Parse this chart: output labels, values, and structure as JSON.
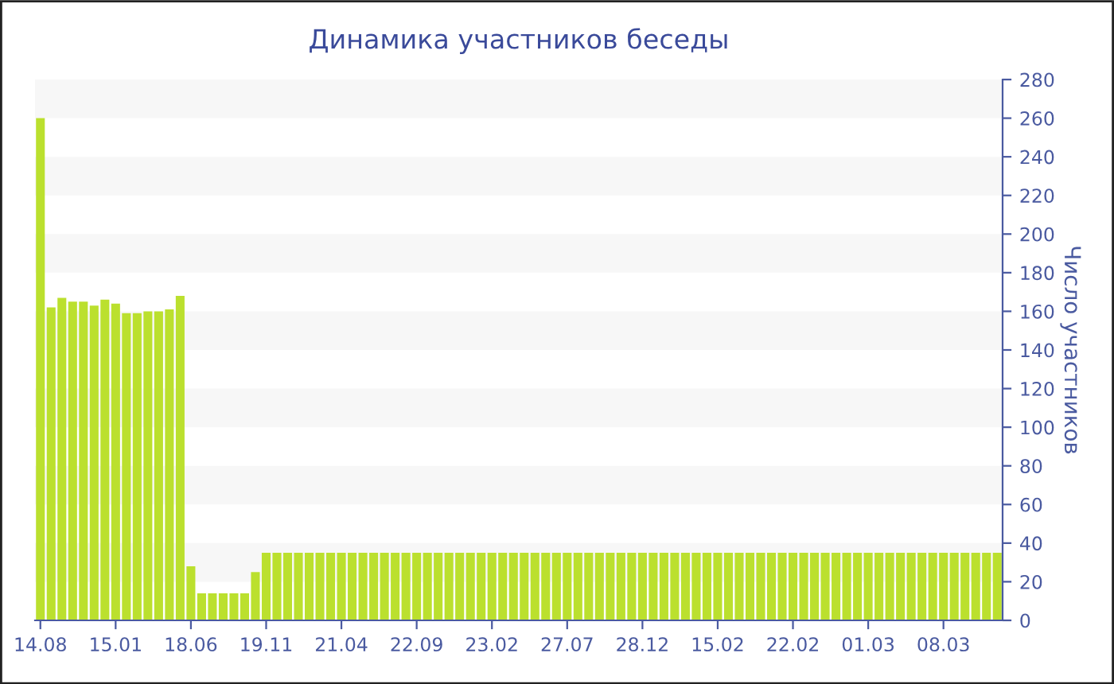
{
  "chart_data": {
    "type": "bar",
    "title": "Динамика участников беседы",
    "ylabel": "Число участников",
    "categories": [
      "14.08",
      null,
      null,
      null,
      null,
      null,
      null,
      "15.01",
      null,
      null,
      null,
      null,
      null,
      null,
      "18.06",
      null,
      null,
      null,
      null,
      null,
      null,
      "19.11",
      null,
      null,
      null,
      null,
      null,
      null,
      "21.04",
      null,
      null,
      null,
      null,
      null,
      null,
      "22.09",
      null,
      null,
      null,
      null,
      null,
      null,
      "23.02",
      null,
      null,
      null,
      null,
      null,
      null,
      "27.07",
      null,
      null,
      null,
      null,
      null,
      null,
      "28.12",
      null,
      null,
      null,
      null,
      null,
      null,
      "15.02",
      null,
      null,
      null,
      null,
      null,
      null,
      "22.02",
      null,
      null,
      null,
      null,
      null,
      null,
      "01.03",
      null,
      null,
      null,
      null,
      null,
      null,
      "08.03",
      null,
      null,
      null,
      null,
      null
    ],
    "values": [
      260,
      162,
      167,
      165,
      165,
      163,
      166,
      164,
      159,
      159,
      160,
      160,
      161,
      168,
      28,
      14,
      14,
      14,
      14,
      14,
      25,
      35,
      35,
      35,
      35,
      35,
      35,
      35,
      35,
      35,
      35,
      35,
      35,
      35,
      35,
      35,
      35,
      35,
      35,
      35,
      35,
      35,
      35,
      35,
      35,
      35,
      35,
      35,
      35,
      35,
      35,
      35,
      35,
      35,
      35,
      35,
      35,
      35,
      35,
      35,
      35,
      35,
      35,
      35,
      35,
      35,
      35,
      35,
      35,
      35,
      35,
      35,
      35,
      35,
      35,
      35,
      35,
      35,
      35,
      35,
      35,
      35,
      35,
      35,
      35,
      35,
      35,
      35,
      35,
      35
    ],
    "color": "#bbe02e",
    "ylim": [
      0,
      280
    ],
    "yticks": [
      0,
      20,
      40,
      60,
      80,
      100,
      120,
      140,
      160,
      180,
      200,
      220,
      240,
      260,
      280
    ],
    "bands": [
      {
        "axis": "y",
        "from": 20,
        "to": 40,
        "color": "#f7f7f7"
      },
      {
        "axis": "y",
        "from": 60,
        "to": 80,
        "color": "#f7f7f7"
      },
      {
        "axis": "y",
        "from": 100,
        "to": 120,
        "color": "#f7f7f7"
      },
      {
        "axis": "y",
        "from": 140,
        "to": 160,
        "color": "#f7f7f7"
      },
      {
        "axis": "y",
        "from": 180,
        "to": 200,
        "color": "#f7f7f7"
      },
      {
        "axis": "y",
        "from": 220,
        "to": 240,
        "color": "#f7f7f7"
      },
      {
        "axis": "y",
        "from": 260,
        "to": 280,
        "color": "#f7f7f7"
      }
    ]
  }
}
